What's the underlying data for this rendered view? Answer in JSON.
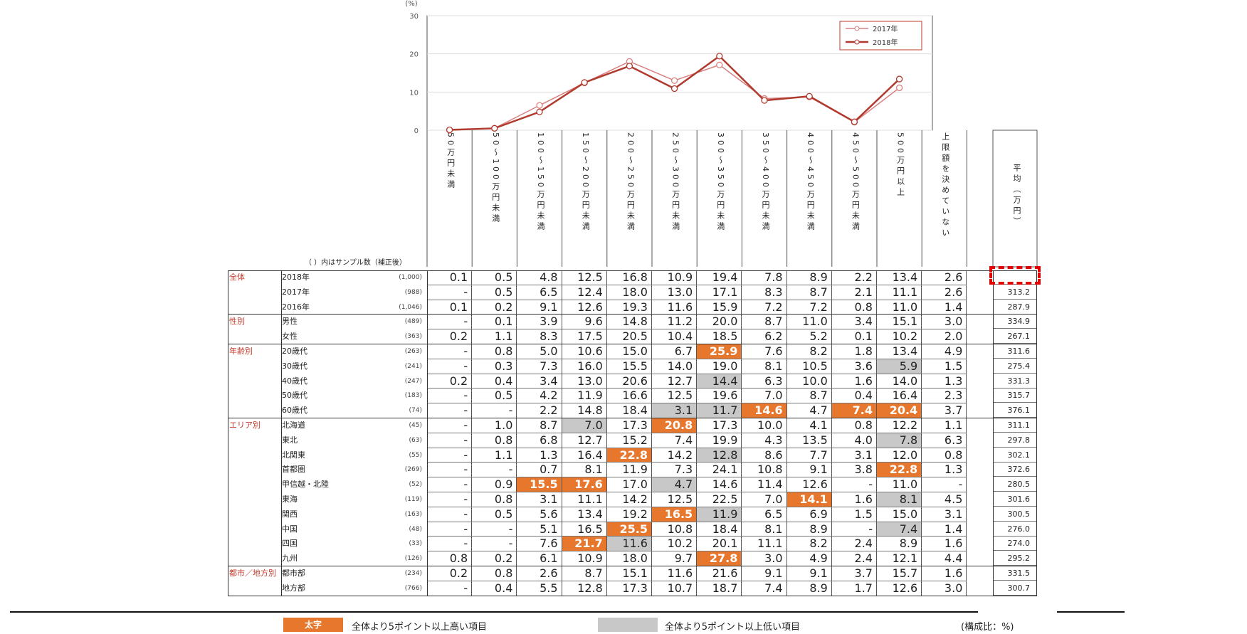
{
  "chart_data": {
    "type": "line",
    "y_unit": "(%)",
    "yticks": [
      "0",
      "10",
      "20",
      "30"
    ],
    "ylim": [
      0,
      30
    ],
    "legend_position": "top-right",
    "series": [
      {
        "name": "2017年",
        "color": "#d98080",
        "values": [
          0,
          0.5,
          6.5,
          12.4,
          18.0,
          13.0,
          17.1,
          8.3,
          8.7,
          2.1,
          11.1
        ]
      },
      {
        "name": "2018年",
        "color": "#b03a2e",
        "values": [
          0.1,
          0.5,
          4.8,
          12.5,
          16.8,
          10.9,
          19.4,
          7.8,
          8.9,
          2.2,
          13.4
        ]
      }
    ],
    "columns": [
      "50万円未満",
      "50〜100万円未満",
      "100〜150万円未満",
      "150〜200万円未満",
      "200〜250万円未満",
      "250〜300万円未満",
      "300〜350万円未満",
      "350〜400万円未満",
      "400〜450万円未満",
      "450〜500万円未満",
      "500万円以上",
      "上限額を決めていない"
    ],
    "avg_header": "平均（万円）",
    "n_header": "（ ）内はサンプル数（補正後）",
    "groups": [
      {
        "label": "全体",
        "rows": [
          {
            "label": "2018年",
            "n": "(1,000)",
            "vals": [
              "0.1",
              "0.5",
              "4.8",
              "12.5",
              "16.8",
              "10.9",
              "19.4",
              "7.8",
              "8.9",
              "2.2",
              "13.4",
              "2.6"
            ],
            "hl": [],
            "avg": ""
          },
          {
            "label": "2017年",
            "n": "(988)",
            "vals": [
              "-",
              "0.5",
              "6.5",
              "12.4",
              "18.0",
              "13.0",
              "17.1",
              "8.3",
              "8.7",
              "2.1",
              "11.1",
              "2.6"
            ],
            "hl": [],
            "avg": "313.2"
          },
          {
            "label": "2016年",
            "n": "(1,046)",
            "vals": [
              "0.1",
              "0.2",
              "9.1",
              "12.6",
              "19.3",
              "11.6",
              "15.9",
              "7.2",
              "7.2",
              "0.8",
              "11.0",
              "1.4"
            ],
            "hl": [],
            "avg": "287.9"
          }
        ]
      },
      {
        "label": "性別",
        "rows": [
          {
            "label": "男性",
            "n": "(489)",
            "vals": [
              "-",
              "0.1",
              "3.9",
              "9.6",
              "14.8",
              "11.2",
              "20.0",
              "8.7",
              "11.0",
              "3.4",
              "15.1",
              "3.0"
            ],
            "hl": [],
            "avg": "334.9"
          },
          {
            "label": "女性",
            "n": "(363)",
            "vals": [
              "0.2",
              "1.1",
              "8.3",
              "17.5",
              "20.5",
              "10.4",
              "18.5",
              "6.2",
              "5.2",
              "0.1",
              "10.2",
              "2.0"
            ],
            "hl": [],
            "avg": "267.1"
          }
        ]
      },
      {
        "label": "年齢別",
        "rows": [
          {
            "label": "20歳代",
            "n": "(263)",
            "vals": [
              "-",
              "0.8",
              "5.0",
              "10.6",
              "15.0",
              "6.7",
              "25.9",
              "7.6",
              "8.2",
              "1.8",
              "13.4",
              "4.9"
            ],
            "hl": [
              "",
              "",
              "",
              "",
              "",
              "",
              "h",
              "",
              "",
              "",
              "",
              ""
            ],
            "avg": "311.6"
          },
          {
            "label": "30歳代",
            "n": "(241)",
            "vals": [
              "-",
              "0.3",
              "7.3",
              "16.0",
              "15.5",
              "14.0",
              "19.0",
              "8.1",
              "10.5",
              "3.6",
              "5.9",
              "1.5"
            ],
            "hl": [
              "",
              "",
              "",
              "",
              "",
              "",
              "",
              "",
              "",
              "",
              "l",
              ""
            ],
            "avg": "275.4"
          },
          {
            "label": "40歳代",
            "n": "(247)",
            "vals": [
              "0.2",
              "0.4",
              "3.4",
              "13.0",
              "20.6",
              "12.7",
              "14.4",
              "6.3",
              "10.0",
              "1.6",
              "14.0",
              "1.3"
            ],
            "hl": [
              "",
              "",
              "",
              "",
              "",
              "",
              "l",
              "",
              "",
              "",
              "",
              ""
            ],
            "avg": "331.3"
          },
          {
            "label": "50歳代",
            "n": "(183)",
            "vals": [
              "-",
              "0.5",
              "4.2",
              "11.9",
              "16.6",
              "12.5",
              "19.6",
              "7.0",
              "8.7",
              "0.4",
              "16.4",
              "2.3"
            ],
            "hl": [],
            "avg": "315.7"
          },
          {
            "label": "60歳代",
            "n": "(74)",
            "vals": [
              "-",
              "-",
              "2.2",
              "14.8",
              "18.4",
              "3.1",
              "11.7",
              "14.6",
              "4.7",
              "7.4",
              "20.4",
              "3.7"
            ],
            "hl": [
              "",
              "",
              "",
              "",
              "",
              "l",
              "l",
              "h",
              "",
              "h",
              "h",
              ""
            ],
            "avg": "376.1"
          }
        ]
      },
      {
        "label": "エリア別",
        "rows": [
          {
            "label": "北海道",
            "n": "(45)",
            "vals": [
              "-",
              "1.0",
              "8.7",
              "7.0",
              "17.3",
              "20.8",
              "17.3",
              "10.0",
              "4.1",
              "0.8",
              "12.2",
              "1.1"
            ],
            "hl": [
              "",
              "",
              "",
              "l",
              "",
              "h",
              "",
              "",
              "",
              "",
              "",
              ""
            ],
            "avg": "311.1"
          },
          {
            "label": "東北",
            "n": "(63)",
            "vals": [
              "-",
              "0.8",
              "6.8",
              "12.7",
              "15.2",
              "7.4",
              "19.9",
              "4.3",
              "13.5",
              "4.0",
              "7.8",
              "6.3"
            ],
            "hl": [
              "",
              "",
              "",
              "",
              "",
              "",
              "",
              "",
              "",
              "",
              "l",
              ""
            ],
            "avg": "297.8"
          },
          {
            "label": "北関東",
            "n": "(55)",
            "vals": [
              "-",
              "1.1",
              "1.3",
              "16.4",
              "22.8",
              "14.2",
              "12.8",
              "8.6",
              "7.7",
              "3.1",
              "12.0",
              "0.8"
            ],
            "hl": [
              "",
              "",
              "",
              "",
              "h",
              "",
              "l",
              "",
              "",
              "",
              "",
              ""
            ],
            "avg": "302.1"
          },
          {
            "label": "首都圏",
            "n": "(269)",
            "vals": [
              "-",
              "-",
              "0.7",
              "8.1",
              "11.9",
              "7.3",
              "24.1",
              "10.8",
              "9.1",
              "3.8",
              "22.8",
              "1.3"
            ],
            "hl": [
              "",
              "",
              "",
              "",
              "",
              "",
              "",
              "",
              "",
              "",
              "h",
              ""
            ],
            "avg": "372.6"
          },
          {
            "label": "甲信越・北陸",
            "n": "(52)",
            "vals": [
              "-",
              "0.9",
              "15.5",
              "17.6",
              "17.0",
              "4.7",
              "14.6",
              "11.4",
              "12.6",
              "-",
              "11.0",
              "-"
            ],
            "hl": [
              "",
              "",
              "h",
              "h",
              "",
              "l",
              "",
              "",
              "",
              "",
              "",
              ""
            ],
            "avg": "280.5"
          },
          {
            "label": "東海",
            "n": "(119)",
            "vals": [
              "-",
              "0.8",
              "3.1",
              "11.1",
              "14.2",
              "12.5",
              "22.5",
              "7.0",
              "14.1",
              "1.6",
              "8.1",
              "4.5"
            ],
            "hl": [
              "",
              "",
              "",
              "",
              "",
              "",
              "",
              "",
              "h",
              "",
              "l",
              ""
            ],
            "avg": "301.6"
          },
          {
            "label": "関西",
            "n": "(163)",
            "vals": [
              "-",
              "0.5",
              "5.6",
              "13.4",
              "19.2",
              "16.5",
              "11.9",
              "6.5",
              "6.9",
              "1.5",
              "15.0",
              "3.1"
            ],
            "hl": [
              "",
              "",
              "",
              "",
              "",
              "h",
              "l",
              "",
              "",
              "",
              "",
              ""
            ],
            "avg": "300.5"
          },
          {
            "label": "中国",
            "n": "(48)",
            "vals": [
              "-",
              "-",
              "5.1",
              "16.5",
              "25.5",
              "10.8",
              "18.4",
              "8.1",
              "8.9",
              "-",
              "7.4",
              "1.4"
            ],
            "hl": [
              "",
              "",
              "",
              "",
              "h",
              "",
              "",
              "",
              "",
              "",
              "l",
              ""
            ],
            "avg": "276.0"
          },
          {
            "label": "四国",
            "n": "(33)",
            "vals": [
              "-",
              "-",
              "7.6",
              "21.7",
              "11.6",
              "10.2",
              "20.1",
              "11.1",
              "8.2",
              "2.4",
              "8.9",
              "1.6"
            ],
            "hl": [
              "",
              "",
              "",
              "h",
              "l",
              "",
              "",
              "",
              "",
              "",
              "",
              ""
            ],
            "avg": "274.0"
          },
          {
            "label": "九州",
            "n": "(126)",
            "vals": [
              "0.8",
              "0.2",
              "6.1",
              "10.9",
              "18.0",
              "9.7",
              "27.8",
              "3.0",
              "4.9",
              "2.4",
              "12.1",
              "4.4"
            ],
            "hl": [
              "",
              "",
              "",
              "",
              "",
              "",
              "h",
              "",
              "",
              "",
              "",
              ""
            ],
            "avg": "295.2"
          }
        ]
      },
      {
        "label": "都市／地方別",
        "rows": [
          {
            "label": "都市部",
            "n": "(234)",
            "vals": [
              "0.2",
              "0.8",
              "2.6",
              "8.7",
              "15.1",
              "11.6",
              "21.6",
              "9.1",
              "9.1",
              "3.7",
              "15.7",
              "1.6"
            ],
            "hl": [],
            "avg": "331.5"
          },
          {
            "label": "地方部",
            "n": "(766)",
            "vals": [
              "-",
              "0.4",
              "5.5",
              "12.8",
              "17.3",
              "10.7",
              "18.7",
              "7.4",
              "8.9",
              "1.7",
              "12.6",
              "3.0"
            ],
            "hl": [],
            "avg": "300.7"
          }
        ]
      }
    ]
  },
  "legend_bottom": {
    "high_tag": "太字",
    "high_text": "全体より5ポイント以上高い項目",
    "low_text": "全体より5ポイント以上低い項目",
    "unit_note": "(構成比：%)"
  }
}
